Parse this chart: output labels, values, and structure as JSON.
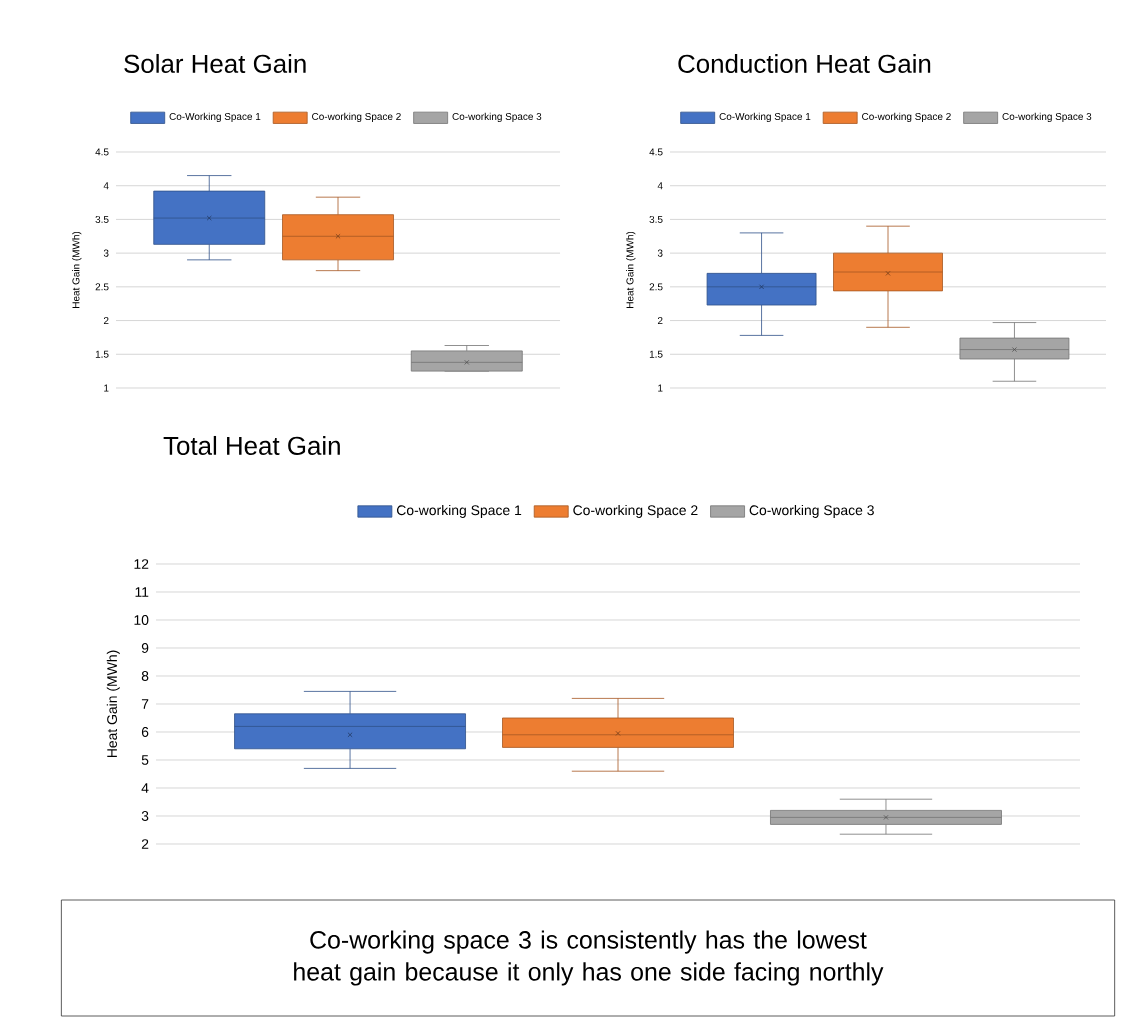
{
  "chart_data": [
    {
      "type": "box",
      "title": "Solar Heat Gain",
      "ylabel": "Heat Gain (MWh)",
      "categories": [
        null
      ],
      "ylim": [
        1,
        4.5
      ],
      "yticks": [
        1,
        1.5,
        2,
        2.5,
        3,
        3.5,
        4,
        4.5
      ],
      "grid": "y",
      "legend": "top",
      "series": [
        {
          "name": "Co-Working Space 1",
          "color": "#4472c4",
          "boxes": [
            {
              "low": 2.9,
              "q1": 3.13,
              "median": 3.52,
              "q3": 3.92,
              "high": 4.15,
              "mean": 3.52
            }
          ]
        },
        {
          "name": "Co-working Space 2",
          "color": "#ed7d31",
          "boxes": [
            {
              "low": 2.74,
              "q1": 2.9,
              "median": 3.25,
              "q3": 3.57,
              "high": 3.83,
              "mean": 3.25
            }
          ]
        },
        {
          "name": "Co-working Space 3",
          "color": "#a5a5a5",
          "boxes": [
            {
              "low": 1.25,
              "q1": 1.25,
              "median": 1.38,
              "q3": 1.55,
              "high": 1.63,
              "mean": 1.38
            }
          ]
        }
      ]
    },
    {
      "type": "box",
      "title": "Conduction Heat Gain",
      "ylabel": "Heat Gain (MWh)",
      "categories": [
        null
      ],
      "ylim": [
        1,
        4.5
      ],
      "yticks": [
        1,
        1.5,
        2,
        2.5,
        3,
        3.5,
        4,
        4.5
      ],
      "grid": "y",
      "legend": "top",
      "series": [
        {
          "name": "Co-Working Space 1",
          "color": "#4472c4",
          "boxes": [
            {
              "low": 1.78,
              "q1": 2.23,
              "median": 2.5,
              "q3": 2.7,
              "high": 3.3,
              "mean": 2.5
            }
          ]
        },
        {
          "name": "Co-working Space 2",
          "color": "#ed7d31",
          "boxes": [
            {
              "low": 1.9,
              "q1": 2.44,
              "median": 2.72,
              "q3": 3.0,
              "high": 3.4,
              "mean": 2.7
            }
          ]
        },
        {
          "name": "Co-working Space 3",
          "color": "#a5a5a5",
          "boxes": [
            {
              "low": 1.1,
              "q1": 1.43,
              "median": 1.57,
              "q3": 1.74,
              "high": 1.97,
              "mean": 1.57
            }
          ]
        }
      ]
    },
    {
      "type": "box",
      "title": "Total Heat Gain",
      "ylabel": "Heat Gain (MWh)",
      "categories": [
        null
      ],
      "ylim": [
        2,
        12
      ],
      "yticks": [
        2,
        3,
        4,
        5,
        6,
        7,
        8,
        9,
        10,
        11,
        12
      ],
      "grid": "y",
      "legend": "top",
      "annotations": [
        "Co-working space 3 is consistently has the lowest heat gain because it only has one side facing northly"
      ],
      "series": [
        {
          "name": "Co-working Space 1",
          "color": "#4472c4",
          "boxes": [
            {
              "low": 4.7,
              "q1": 5.4,
              "median": 6.2,
              "q3": 6.65,
              "high": 7.45,
              "mean": 5.9
            }
          ]
        },
        {
          "name": "Co-working Space 2",
          "color": "#ed7d31",
          "boxes": [
            {
              "low": 4.6,
              "q1": 5.45,
              "median": 5.9,
              "q3": 6.5,
              "high": 7.2,
              "mean": 5.95
            }
          ]
        },
        {
          "name": "Co-working Space 3",
          "color": "#a5a5a5",
          "boxes": [
            {
              "low": 2.35,
              "q1": 2.7,
              "median": 2.95,
              "q3": 3.2,
              "high": 3.6,
              "mean": 2.95
            }
          ]
        }
      ]
    }
  ]
}
